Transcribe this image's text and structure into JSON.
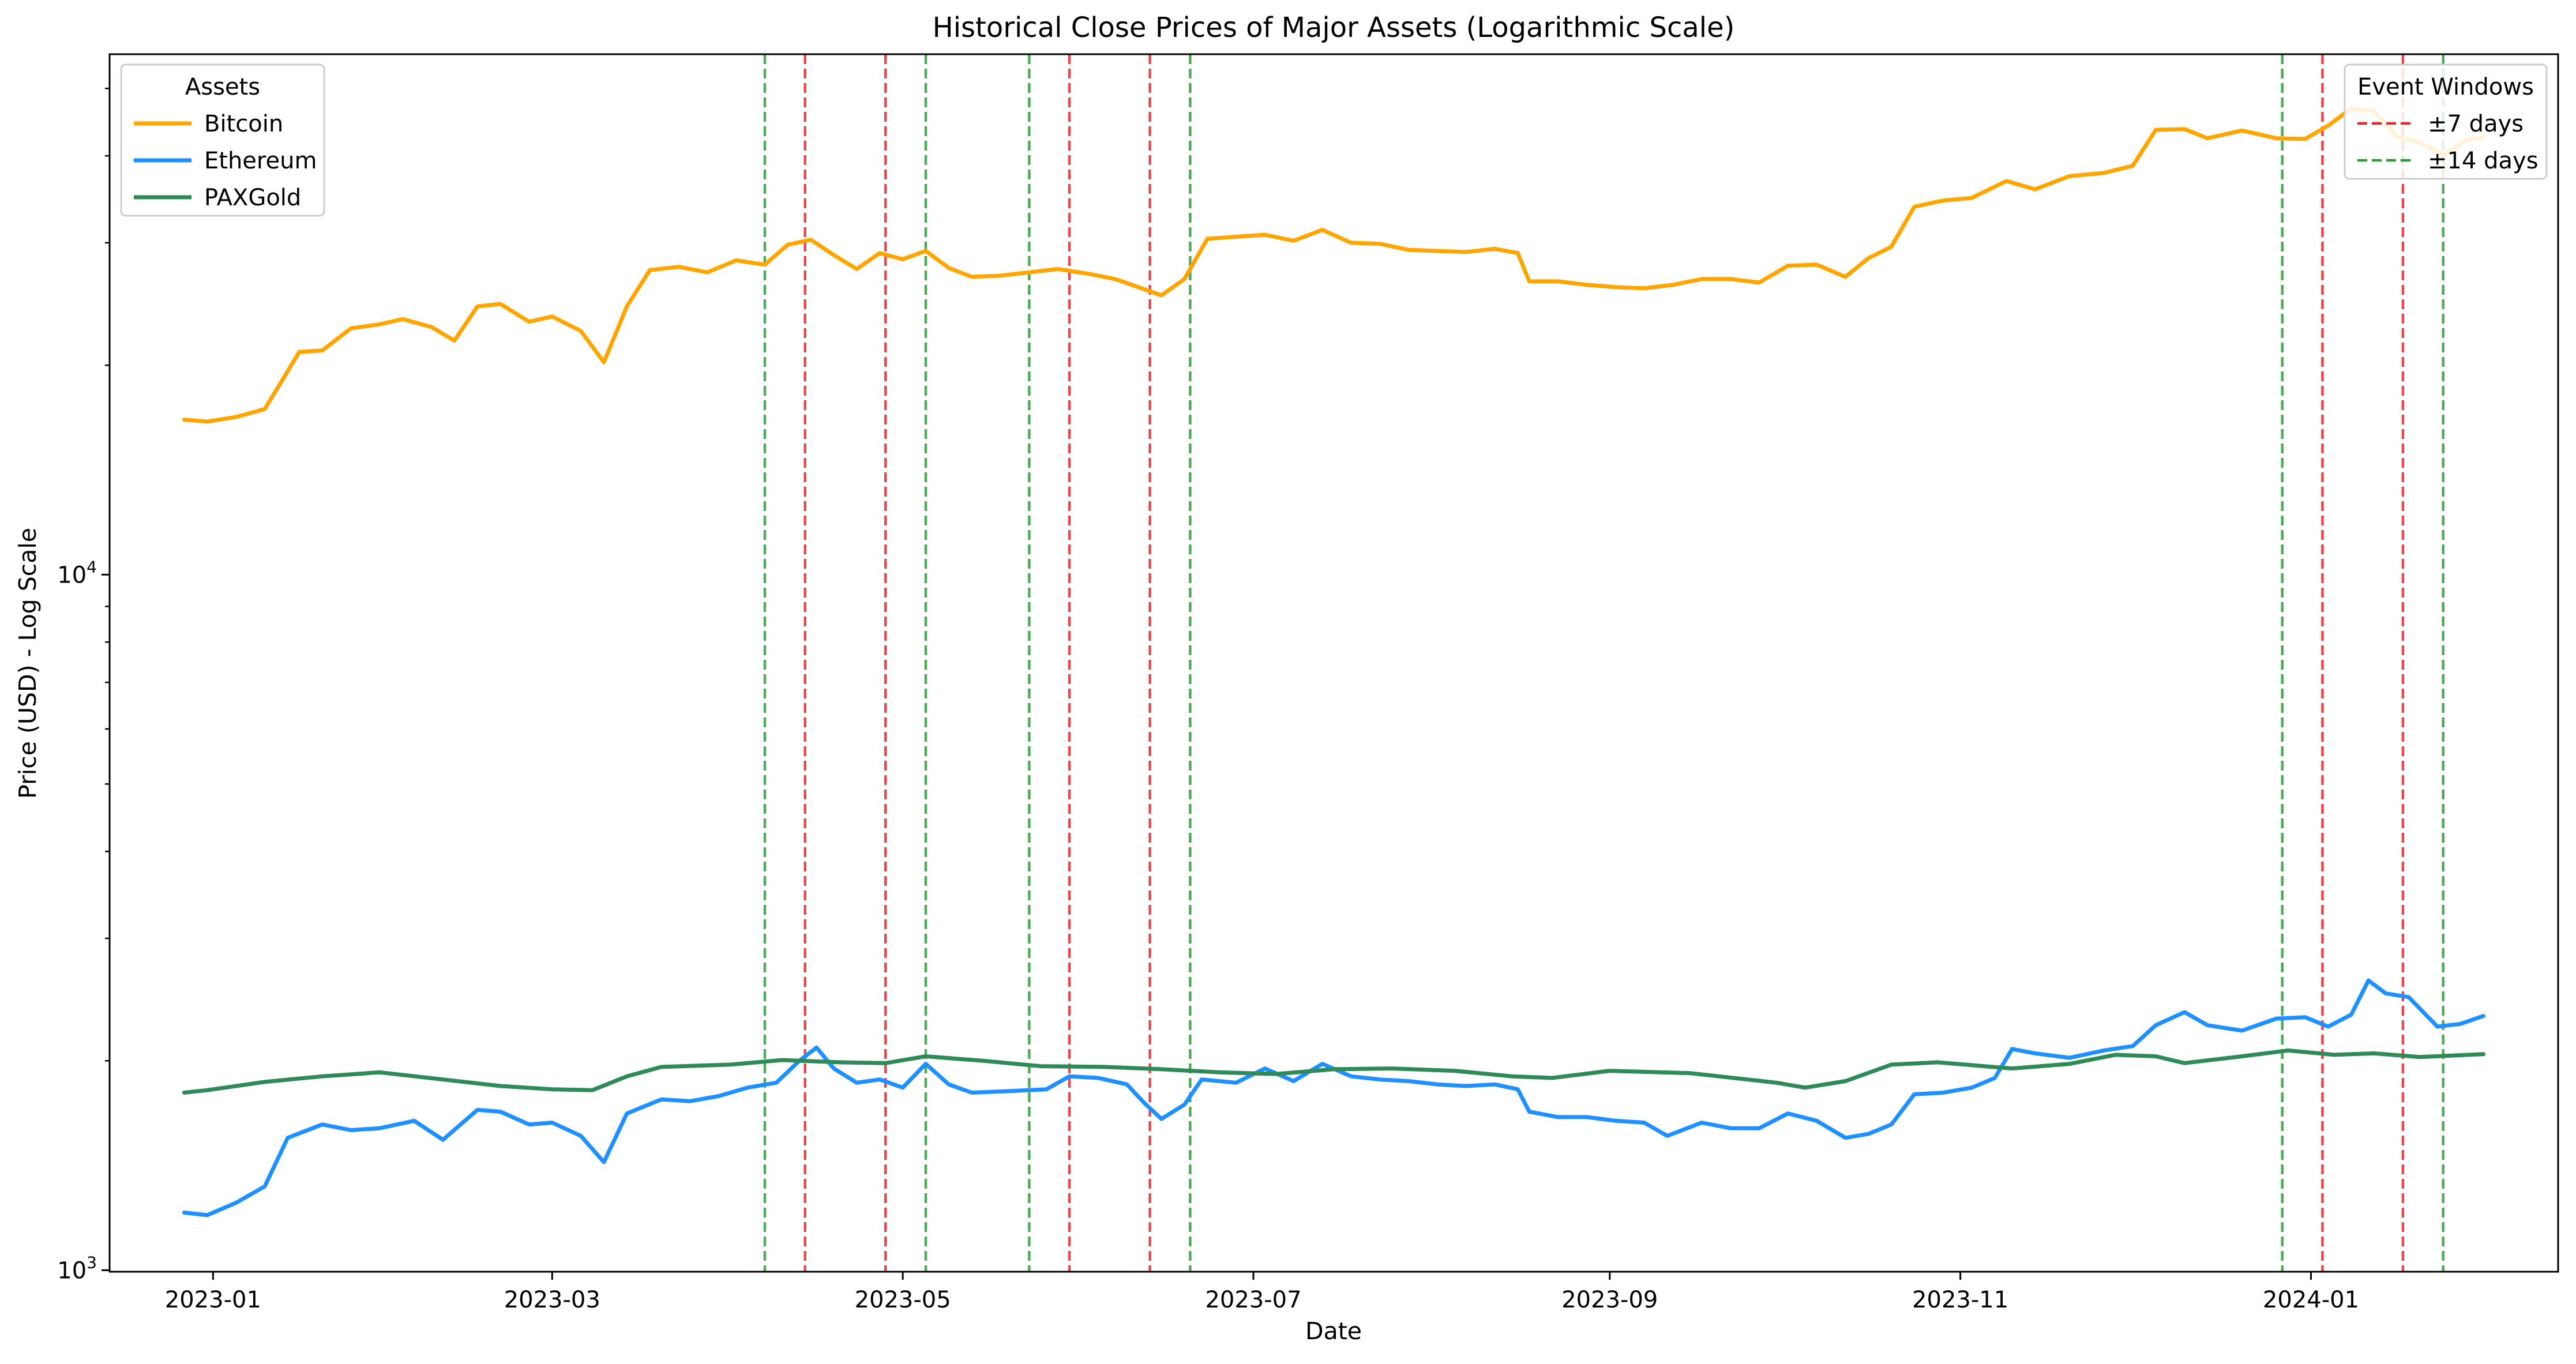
{
  "chart_data": {
    "type": "line",
    "title": "Historical Close Prices of Major Assets (Logarithmic Scale)",
    "xlabel": "Date",
    "ylabel": "Price (USD) - Log Scale",
    "yscale": "log",
    "ylim": [
      995,
      56000
    ],
    "xlim": [
      "2022-12-14",
      "2024-02-13"
    ],
    "y_ticks": [
      {
        "value": 1000,
        "label": "10³",
        "base": "10",
        "exp": "3"
      },
      {
        "value": 10000,
        "label": "10⁴",
        "base": "10",
        "exp": "4"
      }
    ],
    "x_ticks": [
      {
        "date": "2023-01-01",
        "label": "2023-01"
      },
      {
        "date": "2023-03-01",
        "label": "2023-03"
      },
      {
        "date": "2023-05-01",
        "label": "2023-05"
      },
      {
        "date": "2023-07-01",
        "label": "2023-07"
      },
      {
        "date": "2023-09-01",
        "label": "2023-09"
      },
      {
        "date": "2023-11-01",
        "label": "2023-11"
      },
      {
        "date": "2024-01-01",
        "label": "2024-01"
      }
    ],
    "grid": false,
    "series": [
      {
        "name": "Bitcoin",
        "color": "#FFA500",
        "points": [
          [
            "2022-12-27",
            16700
          ],
          [
            "2022-12-31",
            16600
          ],
          [
            "2023-01-05",
            16850
          ],
          [
            "2023-01-10",
            17300
          ],
          [
            "2023-01-13",
            19000
          ],
          [
            "2023-01-16",
            20900
          ],
          [
            "2023-01-20",
            21000
          ],
          [
            "2023-01-25",
            22600
          ],
          [
            "2023-01-30",
            22900
          ],
          [
            "2023-02-03",
            23300
          ],
          [
            "2023-02-08",
            22700
          ],
          [
            "2023-02-12",
            21700
          ],
          [
            "2023-02-16",
            24300
          ],
          [
            "2023-02-20",
            24500
          ],
          [
            "2023-02-25",
            23100
          ],
          [
            "2023-03-01",
            23500
          ],
          [
            "2023-03-06",
            22400
          ],
          [
            "2023-03-10",
            20200
          ],
          [
            "2023-03-14",
            24300
          ],
          [
            "2023-03-18",
            27400
          ],
          [
            "2023-03-23",
            27700
          ],
          [
            "2023-03-28",
            27200
          ],
          [
            "2023-04-02",
            28300
          ],
          [
            "2023-04-07",
            27900
          ],
          [
            "2023-04-11",
            29800
          ],
          [
            "2023-04-15",
            30300
          ],
          [
            "2023-04-19",
            28800
          ],
          [
            "2023-04-23",
            27500
          ],
          [
            "2023-04-27",
            29000
          ],
          [
            "2023-05-01",
            28400
          ],
          [
            "2023-05-05",
            29200
          ],
          [
            "2023-05-09",
            27600
          ],
          [
            "2023-05-13",
            26800
          ],
          [
            "2023-05-18",
            26900
          ],
          [
            "2023-05-23",
            27200
          ],
          [
            "2023-05-28",
            27500
          ],
          [
            "2023-06-02",
            27100
          ],
          [
            "2023-06-07",
            26600
          ],
          [
            "2023-06-11",
            25900
          ],
          [
            "2023-06-15",
            25200
          ],
          [
            "2023-06-19",
            26600
          ],
          [
            "2023-06-23",
            30400
          ],
          [
            "2023-06-28",
            30600
          ],
          [
            "2023-07-03",
            30800
          ],
          [
            "2023-07-08",
            30200
          ],
          [
            "2023-07-13",
            31300
          ],
          [
            "2023-07-18",
            30000
          ],
          [
            "2023-07-23",
            29900
          ],
          [
            "2023-07-28",
            29300
          ],
          [
            "2023-08-02",
            29200
          ],
          [
            "2023-08-07",
            29100
          ],
          [
            "2023-08-12",
            29400
          ],
          [
            "2023-08-16",
            29000
          ],
          [
            "2023-08-18",
            26400
          ],
          [
            "2023-08-23",
            26400
          ],
          [
            "2023-08-28",
            26100
          ],
          [
            "2023-09-02",
            25900
          ],
          [
            "2023-09-07",
            25800
          ],
          [
            "2023-09-12",
            26100
          ],
          [
            "2023-09-17",
            26600
          ],
          [
            "2023-09-22",
            26600
          ],
          [
            "2023-09-27",
            26300
          ],
          [
            "2023-10-02",
            27800
          ],
          [
            "2023-10-07",
            27900
          ],
          [
            "2023-10-12",
            26800
          ],
          [
            "2023-10-16",
            28500
          ],
          [
            "2023-10-20",
            29600
          ],
          [
            "2023-10-24",
            33800
          ],
          [
            "2023-10-29",
            34500
          ],
          [
            "2023-11-03",
            34800
          ],
          [
            "2023-11-09",
            36800
          ],
          [
            "2023-11-14",
            35800
          ],
          [
            "2023-11-20",
            37400
          ],
          [
            "2023-11-26",
            37800
          ],
          [
            "2023-12-01",
            38700
          ],
          [
            "2023-12-05",
            43600
          ],
          [
            "2023-12-10",
            43700
          ],
          [
            "2023-12-14",
            42400
          ],
          [
            "2023-12-20",
            43500
          ],
          [
            "2023-12-26",
            42400
          ],
          [
            "2023-12-31",
            42300
          ],
          [
            "2024-01-04",
            44200
          ],
          [
            "2024-01-08",
            46800
          ],
          [
            "2024-01-12",
            46400
          ],
          [
            "2024-01-16",
            42600
          ],
          [
            "2024-01-20",
            41800
          ],
          [
            "2024-01-24",
            40100
          ],
          [
            "2024-01-28",
            42100
          ],
          [
            "2024-01-31",
            42500
          ]
        ]
      },
      {
        "name": "Ethereum",
        "color": "#1E90FF",
        "points": [
          [
            "2022-12-27",
            1210
          ],
          [
            "2022-12-31",
            1200
          ],
          [
            "2023-01-05",
            1250
          ],
          [
            "2023-01-10",
            1320
          ],
          [
            "2023-01-14",
            1550
          ],
          [
            "2023-01-20",
            1620
          ],
          [
            "2023-01-25",
            1590
          ],
          [
            "2023-01-30",
            1600
          ],
          [
            "2023-02-05",
            1640
          ],
          [
            "2023-02-10",
            1540
          ],
          [
            "2023-02-16",
            1700
          ],
          [
            "2023-02-20",
            1690
          ],
          [
            "2023-02-25",
            1620
          ],
          [
            "2023-03-01",
            1630
          ],
          [
            "2023-03-06",
            1560
          ],
          [
            "2023-03-10",
            1430
          ],
          [
            "2023-03-14",
            1680
          ],
          [
            "2023-03-20",
            1760
          ],
          [
            "2023-03-25",
            1750
          ],
          [
            "2023-03-30",
            1780
          ],
          [
            "2023-04-04",
            1830
          ],
          [
            "2023-04-09",
            1860
          ],
          [
            "2023-04-13",
            2000
          ],
          [
            "2023-04-16",
            2090
          ],
          [
            "2023-04-19",
            1950
          ],
          [
            "2023-04-23",
            1860
          ],
          [
            "2023-04-27",
            1880
          ],
          [
            "2023-05-01",
            1830
          ],
          [
            "2023-05-05",
            1980
          ],
          [
            "2023-05-09",
            1850
          ],
          [
            "2023-05-13",
            1800
          ],
          [
            "2023-05-20",
            1810
          ],
          [
            "2023-05-26",
            1820
          ],
          [
            "2023-05-30",
            1900
          ],
          [
            "2023-06-04",
            1890
          ],
          [
            "2023-06-09",
            1850
          ],
          [
            "2023-06-12",
            1740
          ],
          [
            "2023-06-15",
            1650
          ],
          [
            "2023-06-19",
            1730
          ],
          [
            "2023-06-22",
            1880
          ],
          [
            "2023-06-28",
            1860
          ],
          [
            "2023-07-03",
            1950
          ],
          [
            "2023-07-08",
            1870
          ],
          [
            "2023-07-13",
            1980
          ],
          [
            "2023-07-18",
            1900
          ],
          [
            "2023-07-23",
            1880
          ],
          [
            "2023-07-28",
            1870
          ],
          [
            "2023-08-02",
            1850
          ],
          [
            "2023-08-07",
            1840
          ],
          [
            "2023-08-12",
            1850
          ],
          [
            "2023-08-16",
            1820
          ],
          [
            "2023-08-18",
            1690
          ],
          [
            "2023-08-23",
            1660
          ],
          [
            "2023-08-28",
            1660
          ],
          [
            "2023-09-02",
            1640
          ],
          [
            "2023-09-07",
            1630
          ],
          [
            "2023-09-11",
            1560
          ],
          [
            "2023-09-17",
            1630
          ],
          [
            "2023-09-22",
            1600
          ],
          [
            "2023-09-27",
            1600
          ],
          [
            "2023-10-02",
            1680
          ],
          [
            "2023-10-07",
            1640
          ],
          [
            "2023-10-12",
            1550
          ],
          [
            "2023-10-16",
            1570
          ],
          [
            "2023-10-20",
            1620
          ],
          [
            "2023-10-24",
            1790
          ],
          [
            "2023-10-29",
            1800
          ],
          [
            "2023-11-03",
            1830
          ],
          [
            "2023-11-07",
            1890
          ],
          [
            "2023-11-10",
            2080
          ],
          [
            "2023-11-14",
            2050
          ],
          [
            "2023-11-20",
            2020
          ],
          [
            "2023-11-26",
            2070
          ],
          [
            "2023-12-01",
            2100
          ],
          [
            "2023-12-05",
            2250
          ],
          [
            "2023-12-10",
            2350
          ],
          [
            "2023-12-14",
            2250
          ],
          [
            "2023-12-20",
            2210
          ],
          [
            "2023-12-26",
            2300
          ],
          [
            "2023-12-31",
            2310
          ],
          [
            "2024-01-04",
            2240
          ],
          [
            "2024-01-08",
            2330
          ],
          [
            "2024-01-11",
            2610
          ],
          [
            "2024-01-14",
            2500
          ],
          [
            "2024-01-18",
            2470
          ],
          [
            "2024-01-23",
            2240
          ],
          [
            "2024-01-27",
            2260
          ],
          [
            "2024-01-31",
            2320
          ]
        ]
      },
      {
        "name": "PAXGold",
        "color": "#2E8B57",
        "points": [
          [
            "2022-12-27",
            1800
          ],
          [
            "2022-12-31",
            1815
          ],
          [
            "2023-01-10",
            1865
          ],
          [
            "2023-01-20",
            1900
          ],
          [
            "2023-01-30",
            1925
          ],
          [
            "2023-02-10",
            1880
          ],
          [
            "2023-02-20",
            1840
          ],
          [
            "2023-03-01",
            1820
          ],
          [
            "2023-03-08",
            1815
          ],
          [
            "2023-03-14",
            1900
          ],
          [
            "2023-03-20",
            1960
          ],
          [
            "2023-04-01",
            1975
          ],
          [
            "2023-04-10",
            2005
          ],
          [
            "2023-04-20",
            1990
          ],
          [
            "2023-04-28",
            1985
          ],
          [
            "2023-05-05",
            2030
          ],
          [
            "2023-05-15",
            2000
          ],
          [
            "2023-05-25",
            1965
          ],
          [
            "2023-06-05",
            1960
          ],
          [
            "2023-06-15",
            1945
          ],
          [
            "2023-06-25",
            1925
          ],
          [
            "2023-07-05",
            1915
          ],
          [
            "2023-07-15",
            1945
          ],
          [
            "2023-07-25",
            1950
          ],
          [
            "2023-08-05",
            1935
          ],
          [
            "2023-08-15",
            1900
          ],
          [
            "2023-08-22",
            1890
          ],
          [
            "2023-09-01",
            1935
          ],
          [
            "2023-09-15",
            1920
          ],
          [
            "2023-09-30",
            1860
          ],
          [
            "2023-10-05",
            1830
          ],
          [
            "2023-10-12",
            1870
          ],
          [
            "2023-10-20",
            1975
          ],
          [
            "2023-10-28",
            1990
          ],
          [
            "2023-11-10",
            1950
          ],
          [
            "2023-11-20",
            1980
          ],
          [
            "2023-11-28",
            2040
          ],
          [
            "2023-12-05",
            2030
          ],
          [
            "2023-12-10",
            1985
          ],
          [
            "2023-12-20",
            2030
          ],
          [
            "2023-12-28",
            2070
          ],
          [
            "2024-01-05",
            2040
          ],
          [
            "2024-01-12",
            2050
          ],
          [
            "2024-01-20",
            2025
          ],
          [
            "2024-01-31",
            2045
          ]
        ]
      }
    ],
    "event_lines": [
      {
        "date": "2023-04-07",
        "group": "±14 days"
      },
      {
        "date": "2023-04-14",
        "group": "±7 days"
      },
      {
        "date": "2023-04-28",
        "group": "±7 days"
      },
      {
        "date": "2023-05-05",
        "group": "±14 days"
      },
      {
        "date": "2023-05-23",
        "group": "±14 days"
      },
      {
        "date": "2023-05-30",
        "group": "±7 days"
      },
      {
        "date": "2023-06-13",
        "group": "±7 days"
      },
      {
        "date": "2023-06-20",
        "group": "±14 days"
      },
      {
        "date": "2023-12-27",
        "group": "±14 days"
      },
      {
        "date": "2024-01-03",
        "group": "±7 days"
      },
      {
        "date": "2024-01-17",
        "group": "±7 days"
      },
      {
        "date": "2024-01-24",
        "group": "±14 days"
      }
    ],
    "legends": [
      {
        "title": "Assets",
        "placement": "upper-left",
        "entries": [
          {
            "label": "Bitcoin",
            "color": "#FFA500",
            "style": "solid"
          },
          {
            "label": "Ethereum",
            "color": "#1E90FF",
            "style": "solid"
          },
          {
            "label": "PAXGold",
            "color": "#2E8B57",
            "style": "solid"
          }
        ]
      },
      {
        "title": "Event Windows",
        "placement": "upper-right",
        "entries": [
          {
            "label": "±7 days",
            "color": "#E3282D",
            "style": "dashed"
          },
          {
            "label": "±14 days",
            "color": "#2F9C3A",
            "style": "dashed"
          }
        ]
      }
    ]
  }
}
